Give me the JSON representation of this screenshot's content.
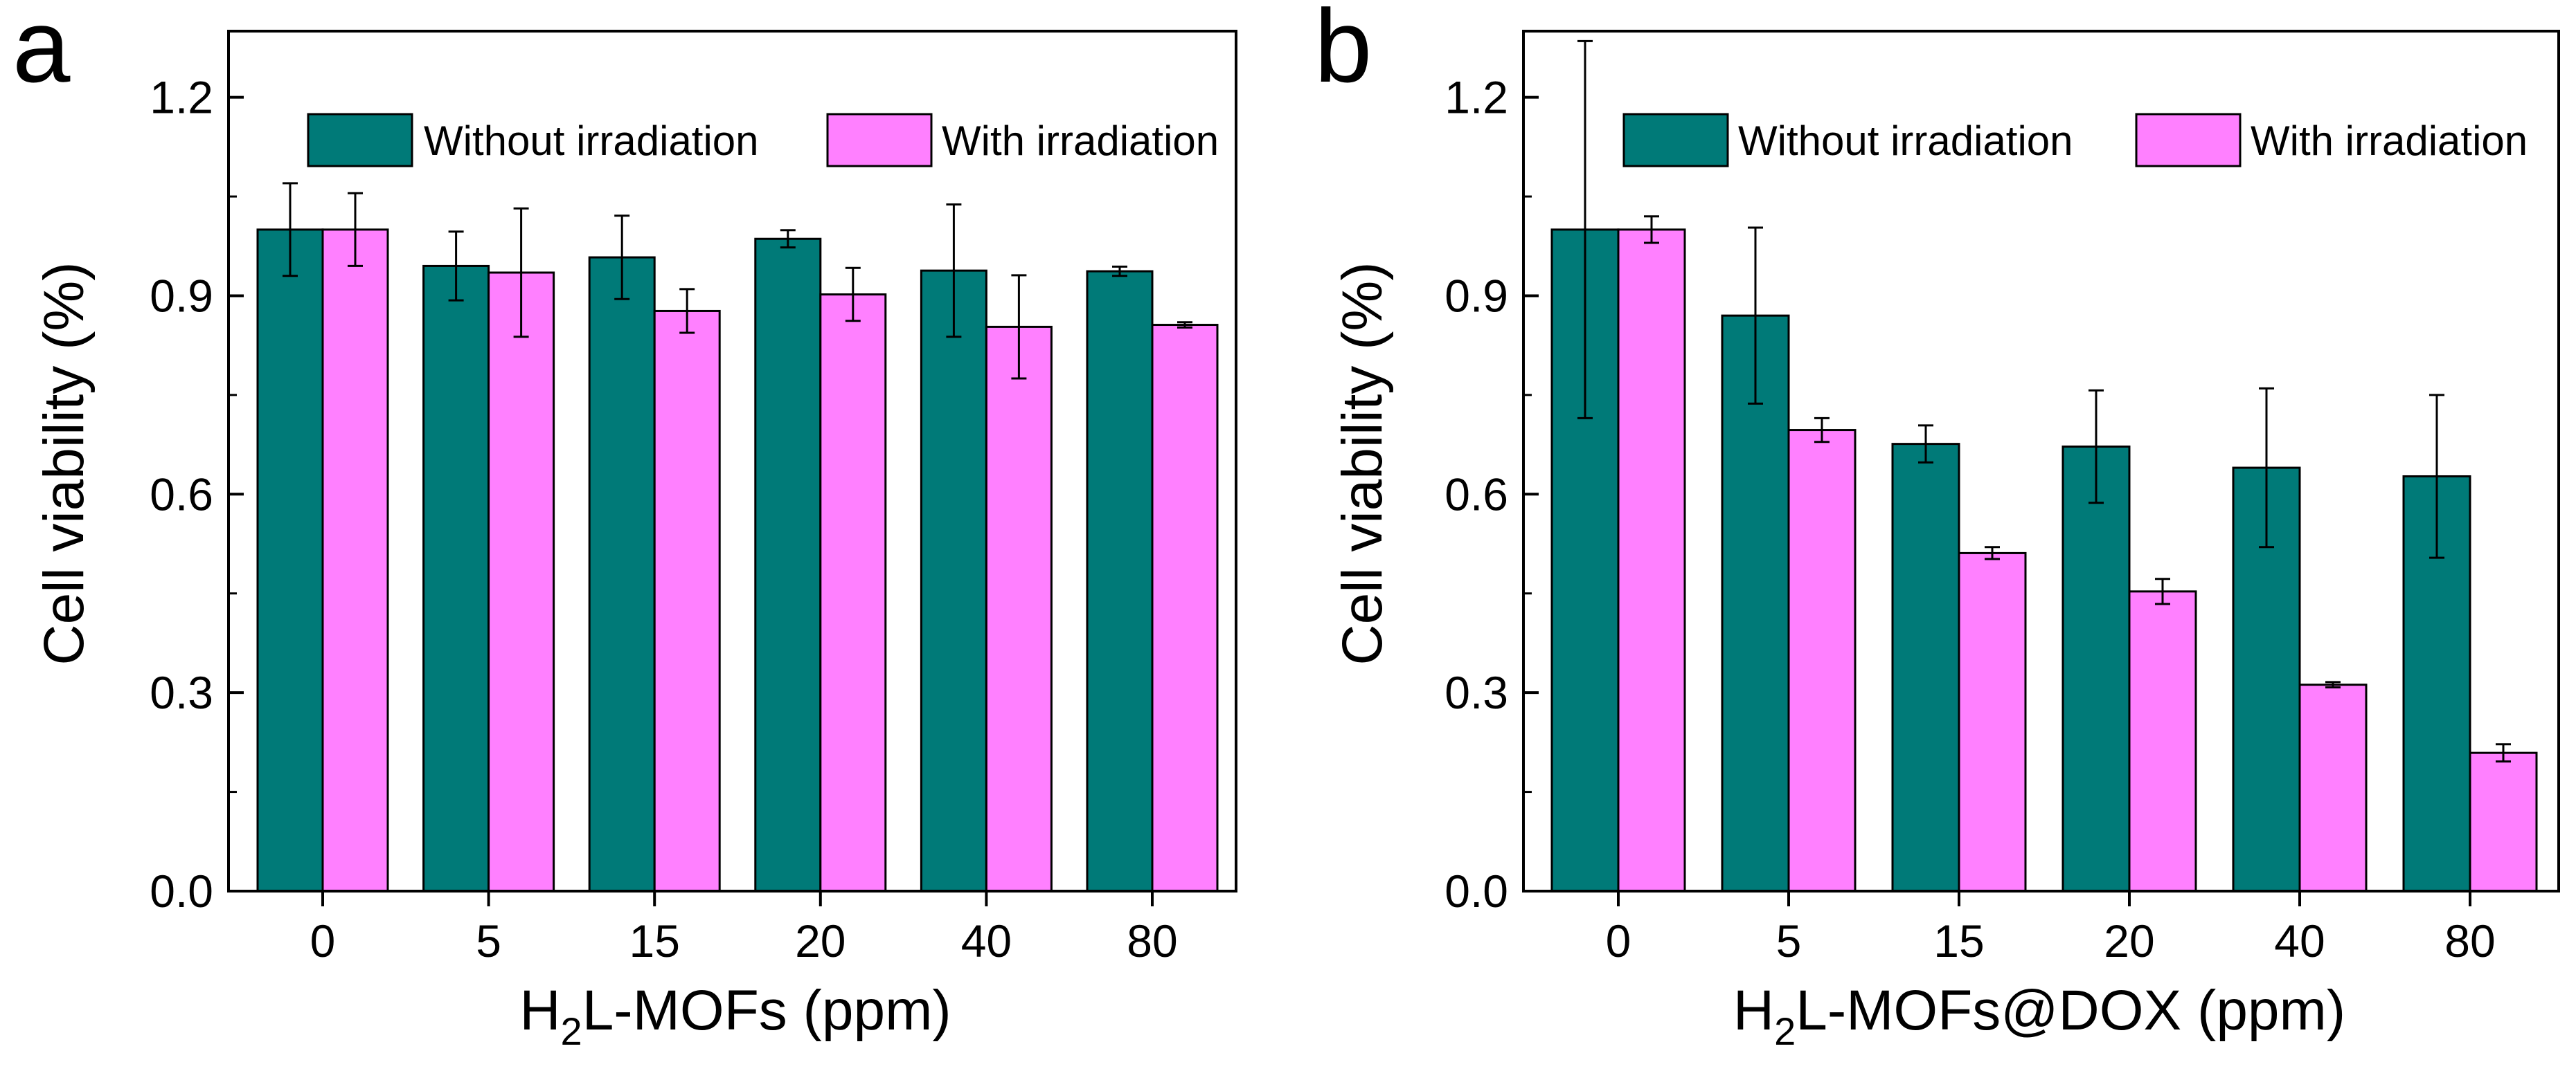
{
  "colors": {
    "without": "#007A78",
    "with": "#FF80FF",
    "axis": "#000000",
    "background": "#ffffff"
  },
  "legend": {
    "without_label": "Without irradiation",
    "with_label": "With irradiation"
  },
  "chart_data": [
    {
      "type": "bar",
      "panel_label": "a",
      "xlabel_main": "H",
      "xlabel_sub": "2",
      "xlabel_rest": "L-MOFs (ppm)",
      "ylabel": "Cell viability (%)",
      "categories": [
        "0",
        "5",
        "15",
        "20",
        "40",
        "80"
      ],
      "ylim": [
        0,
        1.3
      ],
      "yticks": [
        0.0,
        0.3,
        0.6,
        0.9,
        1.2
      ],
      "ytick_labels": [
        "0.0",
        "0.3",
        "0.6",
        "0.9",
        "1.2"
      ],
      "series": [
        {
          "name": "Without irradiation",
          "values": [
            1.0,
            0.945,
            0.958,
            0.986,
            0.938,
            0.937
          ],
          "errors": [
            0.07,
            0.052,
            0.063,
            0.013,
            0.1,
            0.007
          ]
        },
        {
          "name": "With irradiation",
          "values": [
            1.0,
            0.935,
            0.877,
            0.902,
            0.853,
            0.856
          ],
          "errors": [
            0.055,
            0.097,
            0.033,
            0.04,
            0.078,
            0.004
          ]
        }
      ]
    },
    {
      "type": "bar",
      "panel_label": "b",
      "xlabel_main": "H",
      "xlabel_sub": "2",
      "xlabel_rest": "L-MOFs@DOX (ppm)",
      "ylabel": "Cell viability (%)",
      "categories": [
        "0",
        "5",
        "15",
        "20",
        "40",
        "80"
      ],
      "ylim": [
        0,
        1.3
      ],
      "yticks": [
        0.0,
        0.3,
        0.6,
        0.9,
        1.2
      ],
      "ytick_labels": [
        "0.0",
        "0.3",
        "0.6",
        "0.9",
        "1.2"
      ],
      "series": [
        {
          "name": "Without irradiation",
          "values": [
            1.0,
            0.87,
            0.676,
            0.672,
            0.64,
            0.627
          ],
          "errors": [
            0.285,
            0.133,
            0.028,
            0.085,
            0.12,
            0.123
          ]
        },
        {
          "name": "With irradiation",
          "values": [
            1.0,
            0.697,
            0.511,
            0.453,
            0.312,
            0.209
          ],
          "errors": [
            0.02,
            0.018,
            0.009,
            0.019,
            0.004,
            0.013
          ]
        }
      ]
    }
  ]
}
